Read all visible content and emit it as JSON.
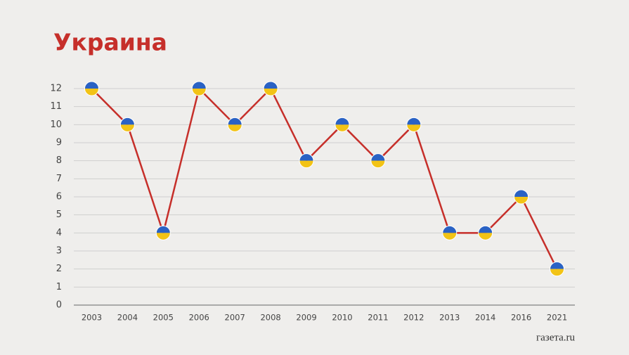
{
  "chart_data": {
    "type": "line",
    "title": "Украина",
    "source": "газета.ru",
    "categories": [
      "2003",
      "2004",
      "2005",
      "2006",
      "2007",
      "2008",
      "2009",
      "2010",
      "2011",
      "2012",
      "2013",
      "2014",
      "2016",
      "2021"
    ],
    "series": [
      {
        "color": "#c62f2a",
        "values": [
          12,
          10,
          4,
          12,
          10,
          12,
          8,
          10,
          8,
          10,
          4,
          4,
          6,
          2
        ]
      }
    ],
    "marker_colors": [
      "#2a62c4",
      "#f2c316"
    ],
    "ylim": [
      0,
      12
    ],
    "yticks": [
      0,
      1,
      2,
      3,
      4,
      5,
      6,
      7,
      8,
      9,
      10,
      11,
      12
    ],
    "grid": true
  }
}
